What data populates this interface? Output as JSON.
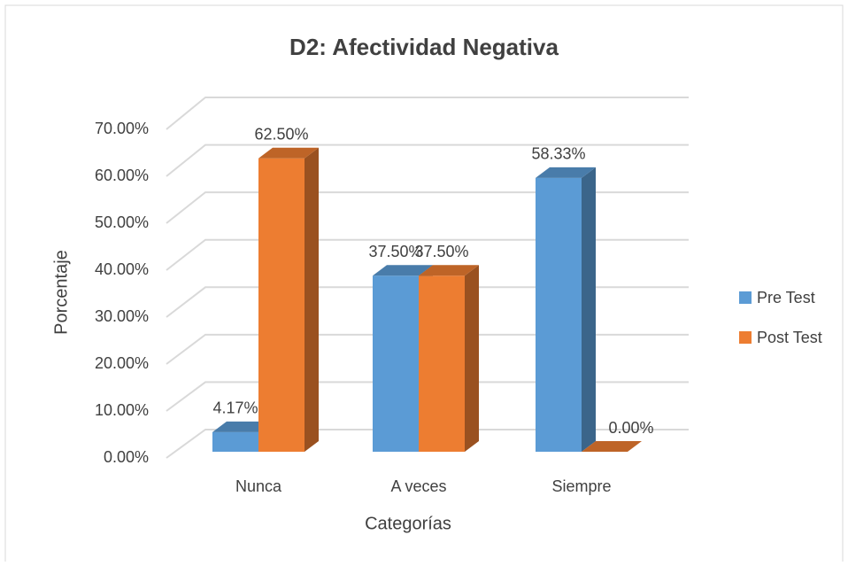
{
  "chart_data": {
    "type": "bar3d",
    "title": "D2: Afectividad Negativa",
    "x_label": "Categorías",
    "y_label": "Porcentaje",
    "categories": [
      "Nunca",
      "A veces",
      "Siempre"
    ],
    "series": [
      {
        "name": "Pre Test",
        "color": "#5b9bd5",
        "values": [
          4.17,
          37.5,
          58.33
        ],
        "value_labels": [
          "4.17%",
          "37.50%",
          "58.33%"
        ]
      },
      {
        "name": "Post Test",
        "color": "#ed7d31",
        "values": [
          62.5,
          37.5,
          0
        ],
        "value_labels": [
          "62.50%",
          "37.50%",
          "0.00%"
        ]
      }
    ],
    "ylim": [
      0,
      70
    ],
    "yticks": [
      {
        "value": 0,
        "label": "0.00%"
      },
      {
        "value": 10,
        "label": "10.00%"
      },
      {
        "value": 20,
        "label": "20.00%"
      },
      {
        "value": 30,
        "label": "30.00%"
      },
      {
        "value": 40,
        "label": "40.00%"
      },
      {
        "value": 50,
        "label": "50.00%"
      },
      {
        "value": 60,
        "label": "60.00%"
      },
      {
        "value": 70,
        "label": "70.00%"
      }
    ],
    "grid": true,
    "legend": "right"
  }
}
